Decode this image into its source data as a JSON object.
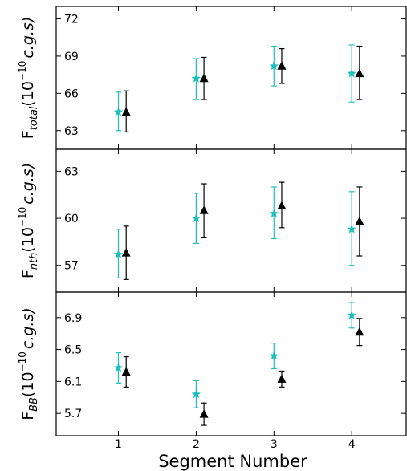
{
  "chart_data": [
    {
      "type": "scatter",
      "ylabel_main": "F",
      "ylabel_sub": "total",
      "ylabel_rest": "(10",
      "ylabel_exp": "−10",
      "ylabel_unit": "c.g.s)",
      "ylim": [
        61.5,
        73.0
      ],
      "yticks": [
        63,
        66,
        69,
        72
      ],
      "ytick_labels": [
        "63",
        "66",
        "69",
        "72"
      ],
      "series": [
        {
          "marker": "star",
          "color": "#1fbfbf",
          "x": [
            1,
            2,
            3,
            4
          ],
          "y": [
            64.5,
            67.2,
            68.2,
            67.6
          ],
          "yerr_low": [
            63.0,
            65.5,
            66.6,
            65.3
          ],
          "yerr_high": [
            66.1,
            68.8,
            69.8,
            69.9
          ]
        },
        {
          "marker": "triangle",
          "color": "#000000",
          "x": [
            1.1,
            2.1,
            3.1,
            4.1
          ],
          "y": [
            64.5,
            67.2,
            68.2,
            67.6
          ],
          "yerr_low": [
            62.9,
            65.5,
            66.8,
            65.5
          ],
          "yerr_high": [
            66.2,
            68.9,
            69.6,
            69.8
          ]
        }
      ]
    },
    {
      "type": "scatter",
      "ylabel_main": "F",
      "ylabel_sub": "nth",
      "ylabel_rest": "(10",
      "ylabel_exp": "−10",
      "ylabel_unit": "c.g.s)",
      "ylim": [
        55.3,
        64.4
      ],
      "yticks": [
        57,
        60,
        63
      ],
      "ytick_labels": [
        "57",
        "60",
        "63"
      ],
      "series": [
        {
          "marker": "star",
          "color": "#1fbfbf",
          "x": [
            1,
            2,
            3,
            4
          ],
          "y": [
            57.7,
            60.0,
            60.3,
            59.3
          ],
          "yerr_low": [
            56.2,
            58.4,
            58.7,
            57.0
          ],
          "yerr_high": [
            59.3,
            61.6,
            62.0,
            61.7
          ]
        },
        {
          "marker": "triangle",
          "color": "#000000",
          "x": [
            1.1,
            2.1,
            3.1,
            4.1
          ],
          "y": [
            57.8,
            60.5,
            60.8,
            59.8
          ],
          "yerr_low": [
            56.1,
            58.8,
            59.4,
            57.6
          ],
          "yerr_high": [
            59.5,
            62.2,
            62.3,
            62.0
          ]
        }
      ]
    },
    {
      "type": "scatter",
      "ylabel_main": "F",
      "ylabel_sub": "BB",
      "ylabel_rest": "(10",
      "ylabel_exp": "−10",
      "ylabel_unit": "c.g.s)",
      "ylim": [
        5.42,
        7.22
      ],
      "yticks": [
        5.7,
        6.1,
        6.5,
        6.9
      ],
      "ytick_labels": [
        "5.7",
        "6.1",
        "6.5",
        "6.9"
      ],
      "series": [
        {
          "marker": "star",
          "color": "#1fbfbf",
          "x": [
            1,
            2,
            3,
            4
          ],
          "y": [
            6.27,
            5.94,
            6.42,
            6.93
          ],
          "yerr_low": [
            6.08,
            5.77,
            6.26,
            6.77
          ],
          "yerr_high": [
            6.46,
            6.11,
            6.58,
            7.09
          ]
        },
        {
          "marker": "triangle",
          "color": "#000000",
          "x": [
            1.1,
            2.1,
            3.1,
            4.1
          ],
          "y": [
            6.22,
            5.69,
            6.13,
            6.72
          ],
          "yerr_low": [
            6.03,
            5.55,
            6.03,
            6.55
          ],
          "yerr_high": [
            6.41,
            5.83,
            6.23,
            6.89
          ]
        }
      ]
    }
  ],
  "x_axis": {
    "xlabel": "Segment Number",
    "xlim": [
      0.2,
      4.7
    ],
    "xticks": [
      1,
      2,
      3,
      4
    ],
    "xtick_labels": [
      "1",
      "2",
      "3",
      "4"
    ]
  }
}
